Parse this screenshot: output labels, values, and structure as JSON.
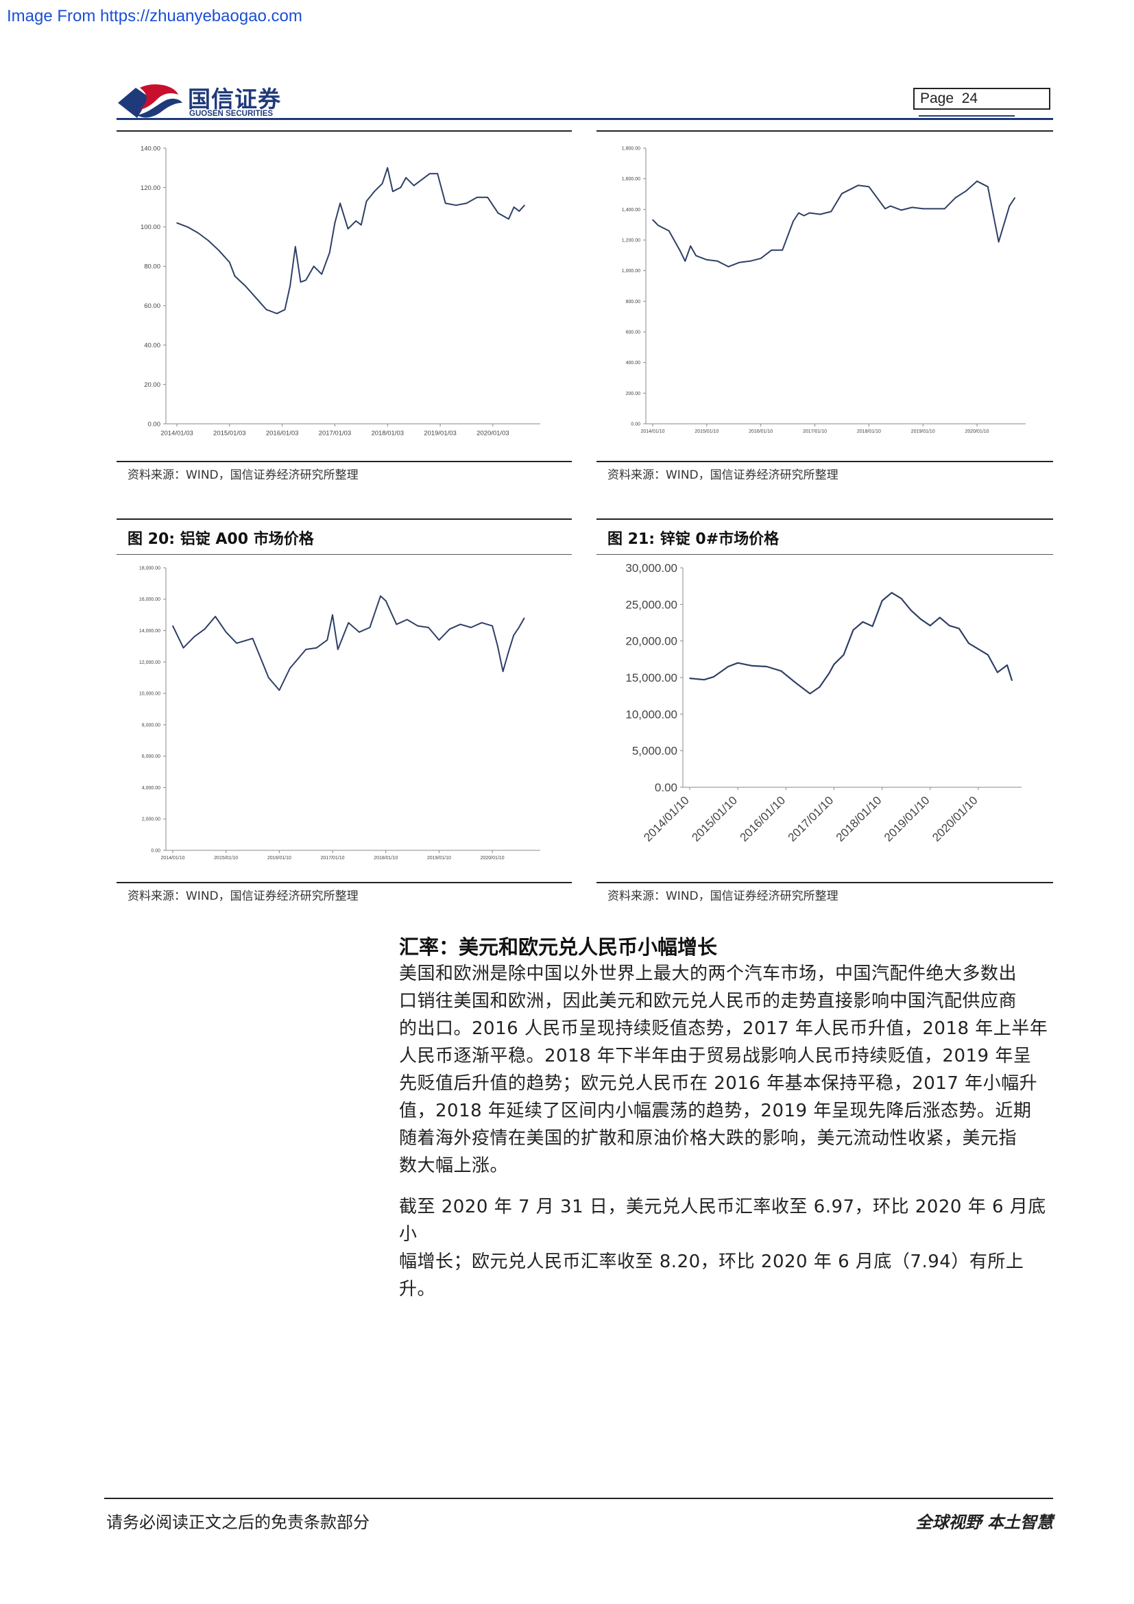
{
  "watermark": "Image From https://zhuanyebaogao.com",
  "header": {
    "logo_cn": "国信证券",
    "logo_en": "GUOSEN SECURITIES",
    "page_label": "Page",
    "page_number": "24"
  },
  "colors": {
    "brand_blue": "#1f3a7a",
    "brand_red": "#c8102e",
    "line": "#2d3f66"
  },
  "panels": {
    "top_left": {
      "source": "资料来源：WIND，国信证券经济研究所整理"
    },
    "top_right": {
      "source": "资料来源：WIND，国信证券经济研究所整理"
    },
    "bottom_left": {
      "title": "图 20:  铝锭 A00 市场价格",
      "source": "资料来源：WIND，国信证券经济研究所整理"
    },
    "bottom_right": {
      "title": "图 21:  锌锭 0#市场价格",
      "source": "资料来源：WIND，国信证券经济研究所整理"
    }
  },
  "chart_data": [
    {
      "type": "line",
      "title": "",
      "y_ticks": [
        "140.00",
        "120.00",
        "100.00",
        "80.00",
        "60.00",
        "40.00",
        "20.00",
        "0.00"
      ],
      "x_ticks": [
        "2014/01/03",
        "2015/01/03",
        "2016/01/03",
        "2017/01/03",
        "2018/01/03",
        "2019/01/03",
        "2020/01/03"
      ],
      "ylim": [
        0,
        140
      ],
      "x": [
        0,
        0.2,
        0.4,
        0.6,
        0.8,
        1.0,
        1.1,
        1.3,
        1.5,
        1.7,
        1.9,
        2.05,
        2.15,
        2.25,
        2.35,
        2.45,
        2.6,
        2.75,
        2.9,
        3.0,
        3.1,
        3.25,
        3.4,
        3.5,
        3.6,
        3.75,
        3.9,
        4.0,
        4.1,
        4.25,
        4.35,
        4.5,
        4.65,
        4.8,
        4.95,
        5.1,
        5.3,
        5.5,
        5.7,
        5.9,
        6.1,
        6.3,
        6.4,
        6.5,
        6.6
      ],
      "values": [
        102,
        100,
        97,
        93,
        88,
        82,
        75,
        70,
        64,
        58,
        56,
        58,
        70,
        90,
        72,
        73,
        80,
        76,
        87,
        102,
        112,
        99,
        103,
        101,
        113,
        118,
        122,
        130,
        118,
        120,
        125,
        121,
        124,
        127,
        127,
        112,
        111,
        112,
        115,
        115,
        107,
        104,
        110,
        108,
        111
      ]
    },
    {
      "type": "line",
      "title": "",
      "y_ticks": [
        "1,800.00",
        "1,600.00",
        "1,400.00",
        "1,200.00",
        "1,000.00",
        "800.00",
        "600.00",
        "400.00",
        "200.00",
        "0.00"
      ],
      "x_ticks": [
        "2014/01/10",
        "2015/01/10",
        "2016/01/10",
        "2017/01/10",
        "2018/01/10",
        "2019/01/10",
        "2020/01/10"
      ],
      "ylim": [
        0,
        2000
      ],
      "x": [
        0,
        0.1,
        0.3,
        0.5,
        0.6,
        0.7,
        0.8,
        1.0,
        1.2,
        1.4,
        1.6,
        1.8,
        2.0,
        2.2,
        2.4,
        2.6,
        2.7,
        2.8,
        2.9,
        3.1,
        3.3,
        3.5,
        3.8,
        4.0,
        4.3,
        4.4,
        4.6,
        4.8,
        5.0,
        5.2,
        5.4,
        5.6,
        5.8,
        6.0,
        6.2,
        6.4,
        6.6,
        6.7
      ],
      "values": [
        1480,
        1440,
        1400,
        1260,
        1180,
        1290,
        1220,
        1190,
        1180,
        1140,
        1170,
        1180,
        1200,
        1260,
        1260,
        1470,
        1530,
        1510,
        1530,
        1520,
        1540,
        1670,
        1730,
        1720,
        1560,
        1580,
        1550,
        1570,
        1560,
        1560,
        1560,
        1640,
        1690,
        1760,
        1720,
        1320,
        1580,
        1640
      ]
    },
    {
      "type": "line",
      "title": "",
      "y_ticks": [
        "18,000.00",
        "16,000.00",
        "14,000.00",
        "12,000.00",
        "10,000.00",
        "8,000.00",
        "6,000.00",
        "4,000.00",
        "2,000.00",
        "0.00"
      ],
      "x_ticks": [
        "2014/01/10",
        "2015/01/10",
        "2016/01/10",
        "2017/01/10",
        "2018/01/10",
        "2019/01/10",
        "2020/01/10"
      ],
      "ylim": [
        0,
        18000
      ],
      "x": [
        0,
        0.2,
        0.4,
        0.6,
        0.8,
        1.0,
        1.2,
        1.5,
        1.8,
        2.0,
        2.2,
        2.5,
        2.7,
        2.9,
        3.0,
        3.1,
        3.3,
        3.5,
        3.7,
        3.9,
        4.0,
        4.2,
        4.4,
        4.6,
        4.8,
        5.0,
        5.2,
        5.4,
        5.6,
        5.8,
        6.0,
        6.1,
        6.2,
        6.3,
        6.4,
        6.5,
        6.6
      ],
      "values": [
        14300,
        12900,
        13600,
        14100,
        14900,
        13900,
        13200,
        13500,
        11000,
        10200,
        11600,
        12800,
        12900,
        13400,
        15000,
        12800,
        14500,
        13900,
        14200,
        16200,
        15900,
        14400,
        14700,
        14300,
        14200,
        13400,
        14100,
        14400,
        14200,
        14500,
        14300,
        13000,
        11400,
        12600,
        13700,
        14200,
        14800
      ]
    },
    {
      "type": "line",
      "title": "",
      "y_ticks": [
        "30,000.00",
        "25,000.00",
        "20,000.00",
        "15,000.00",
        "10,000.00",
        "5,000.00",
        "0.00"
      ],
      "x_ticks": [
        "2014/01/10",
        "2015/01/10",
        "2016/01/10",
        "2017/01/10",
        "2018/01/10",
        "2019/01/10",
        "2020/01/10"
      ],
      "ylim": [
        0,
        30000
      ],
      "x": [
        0,
        0.3,
        0.5,
        0.8,
        1.0,
        1.3,
        1.6,
        1.9,
        2.2,
        2.5,
        2.7,
        2.9,
        3.0,
        3.2,
        3.4,
        3.6,
        3.8,
        4.0,
        4.2,
        4.4,
        4.6,
        4.8,
        5.0,
        5.2,
        5.4,
        5.6,
        5.8,
        6.0,
        6.2,
        6.4,
        6.6,
        6.7
      ],
      "values": [
        14900,
        14700,
        15100,
        16500,
        17000,
        16600,
        16500,
        15900,
        14300,
        12800,
        13700,
        15600,
        16800,
        18100,
        21500,
        22600,
        22000,
        25500,
        26600,
        25800,
        24200,
        23000,
        22100,
        23200,
        22100,
        21700,
        19700,
        18900,
        18100,
        15700,
        16700,
        14600
      ]
    }
  ],
  "section": {
    "title": "汇率：美元和欧元兑人民币小幅增长",
    "paragraph1_lines": [
      "美国和欧洲是除中国以外世界上最大的两个汽车市场，中国汽配件绝大多数出",
      "口销往美国和欧洲，因此美元和欧元兑人民币的走势直接影响中国汽配供应商",
      "的出口。2016 人民币呈现持续贬值态势，2017 年人民币升值，2018 年上半年",
      "人民币逐渐平稳。2018 年下半年由于贸易战影响人民币持续贬值，2019 年呈",
      "先贬值后升值的趋势；欧元兑人民币在 2016 年基本保持平稳，2017 年小幅升",
      "值，2018 年延续了区间内小幅震荡的趋势，2019 年呈现先降后涨态势。近期",
      "随着海外疫情在美国的扩散和原油价格大跌的影响，美元流动性收紧，美元指",
      "数大幅上涨。"
    ],
    "paragraph2_lines": [
      "截至 2020 年 7 月 31 日，美元兑人民币汇率收至 6.97，环比 2020 年 6 月底小",
      "幅增长；欧元兑人民币汇率收至 8.20，环比 2020 年 6 月底（7.94）有所上升。"
    ]
  },
  "footer": {
    "left": "请务必阅读正文之后的免责条款部分",
    "right": "全球视野   本土智慧"
  }
}
